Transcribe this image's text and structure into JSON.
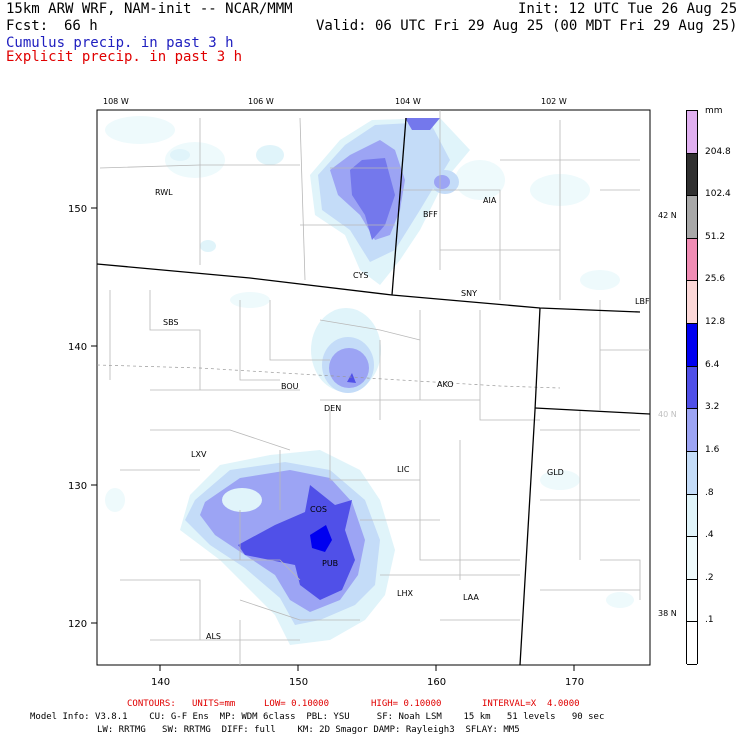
{
  "header": {
    "model": "15km ARW WRF, NAM-init -- NCAR/MMM",
    "init": "Init: 12 UTC Tue 26 Aug 25",
    "fcst_label": "Fcst:",
    "fcst_value": "66 h",
    "valid": "Valid: 06 UTC Fri 29 Aug 25 (00 MDT Fri 29 Aug 25)",
    "cumulus": "Cumulus precip. in past 3 h",
    "explicit": "Explicit precip. in past 3 h"
  },
  "colors": {
    "cumulus_text": "#2020c0",
    "explicit_text": "#e00000",
    "contour_text": "#e00000"
  },
  "map": {
    "top_lon_labels": [
      "108 W",
      "106 W",
      "104 W",
      "102 W"
    ],
    "right_lat_labels": [
      "42 N",
      "40 N",
      "38 N"
    ],
    "bottom_ticks": [
      "140",
      "150",
      "160",
      "170"
    ],
    "left_ticks": [
      "150",
      "140",
      "130",
      "120"
    ],
    "stations": [
      "RWL",
      "BFF",
      "AIA",
      "CYS",
      "SNY",
      "LBF",
      "SBS",
      "BOU",
      "AKO",
      "DEN",
      "LXV",
      "LIC",
      "GLD",
      "COS",
      "PUB",
      "LHX",
      "LAA",
      "ALS"
    ]
  },
  "legend": {
    "unit": "mm",
    "levels": [
      {
        "label": "204.8",
        "color": "#e0b0f0"
      },
      {
        "label": "102.4",
        "color": "#303030"
      },
      {
        "label": "51.2",
        "color": "#a8a8a8"
      },
      {
        "label": "25.6",
        "color": "#f08cb4"
      },
      {
        "label": "12.8",
        "color": "#fcd8d8"
      },
      {
        "label": "6.4",
        "color": "#0000f0"
      },
      {
        "label": "3.2",
        "color": "#5050e8"
      },
      {
        "label": "1.6",
        "color": "#9ca4f4"
      },
      {
        "label": ".8",
        "color": "#c4dcf8"
      },
      {
        "label": ".4",
        "color": "#e0f4fa"
      },
      {
        "label": ".2",
        "color": "#eefafc"
      },
      {
        "label": ".1",
        "color": "#fafefe"
      },
      {
        "label": "",
        "color": "#ffffff"
      }
    ]
  },
  "contours": {
    "label": "CONTOURS:",
    "units": "UNITS=mm",
    "low": "LOW= 0.10000",
    "high": "HIGH= 0.10000",
    "interval": "INTERVAL=X  4.0000"
  },
  "model_info": {
    "line1": "Model Info: V3.8.1    CU: G-F Ens  MP: WDM 6class  PBL: YSU     SF: Noah LSM    15 km   51 levels   90 sec",
    "line2": "LW: RRTMG   SW: RRTMG  DIFF: full    KM: 2D Smagor DAMP: Rayleigh3  SFLAY: MM5"
  }
}
